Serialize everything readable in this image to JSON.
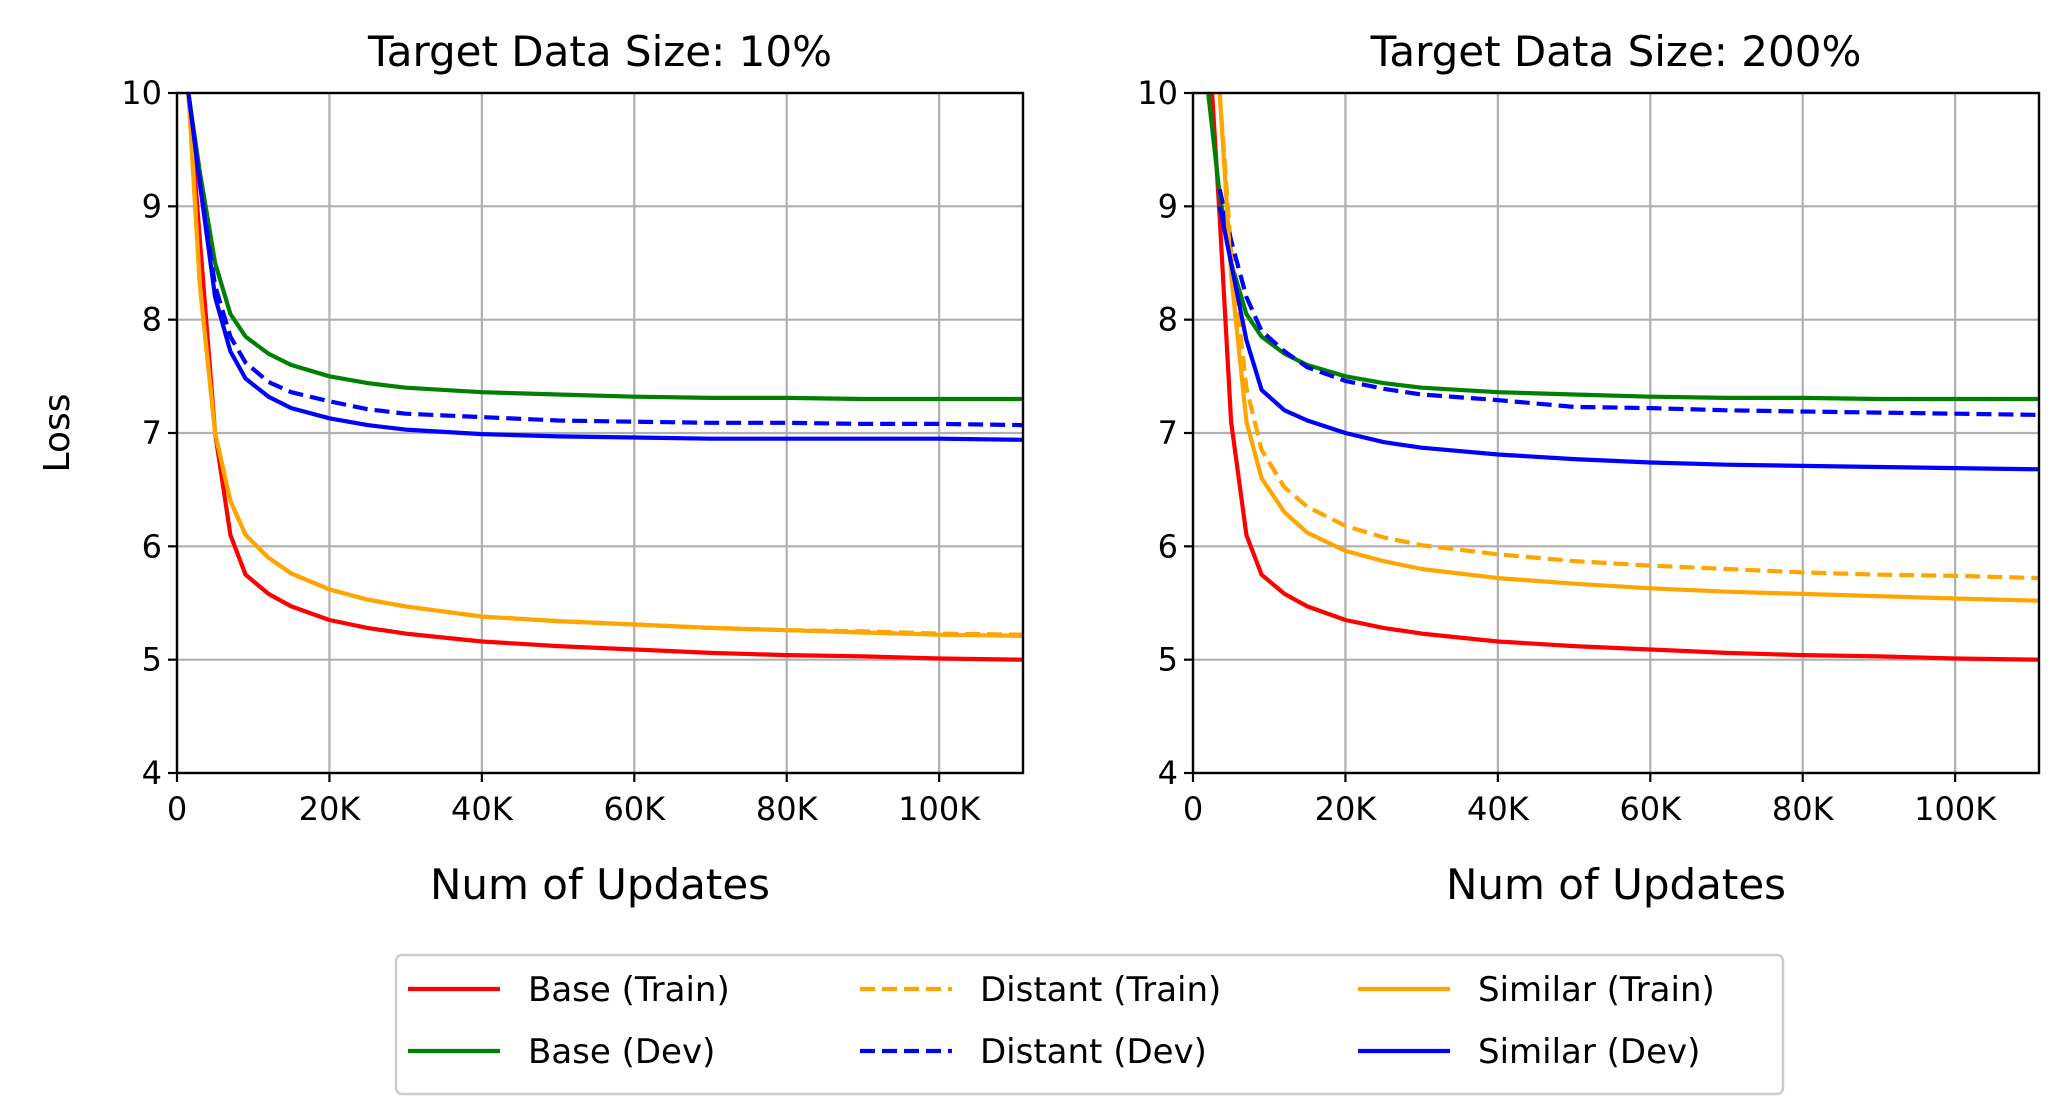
{
  "chart_data": [
    {
      "type": "line",
      "title": "Target Data Size: 10%",
      "xlabel": "Num of Updates",
      "ylabel": "Loss",
      "xlim": [
        0,
        111000
      ],
      "ylim": [
        4,
        10
      ],
      "xticks": [
        0,
        20000,
        40000,
        60000,
        80000,
        100000
      ],
      "xtick_labels": [
        "0",
        "20K",
        "40K",
        "60K",
        "80K",
        "100K"
      ],
      "yticks": [
        4,
        5,
        6,
        7,
        8,
        9,
        10
      ],
      "ytick_labels": [
        "4",
        "5",
        "6",
        "7",
        "8",
        "9",
        "10"
      ],
      "grid": true,
      "series": [
        {
          "name": "Base (Train)",
          "color": "#ff0000",
          "dash": "solid",
          "x": [
            1500,
            3000,
            5000,
            7000,
            9000,
            12000,
            15000,
            20000,
            25000,
            30000,
            40000,
            50000,
            60000,
            70000,
            80000,
            90000,
            100000,
            111000
          ],
          "y": [
            10,
            8.7,
            7.0,
            6.1,
            5.75,
            5.58,
            5.47,
            5.35,
            5.28,
            5.23,
            5.16,
            5.12,
            5.09,
            5.06,
            5.04,
            5.03,
            5.01,
            5.0
          ]
        },
        {
          "name": "Base (Dev)",
          "color": "#008000",
          "dash": "solid",
          "x": [
            1500,
            3000,
            5000,
            7000,
            9000,
            12000,
            15000,
            20000,
            25000,
            30000,
            40000,
            50000,
            60000,
            70000,
            80000,
            90000,
            100000,
            111000
          ],
          "y": [
            10,
            9.3,
            8.5,
            8.05,
            7.85,
            7.7,
            7.6,
            7.5,
            7.44,
            7.4,
            7.36,
            7.34,
            7.32,
            7.31,
            7.31,
            7.3,
            7.3,
            7.3
          ]
        },
        {
          "name": "Distant (Train)",
          "color": "#ffa500",
          "dash": "dashed",
          "x": [
            1500,
            3000,
            5000,
            7000,
            9000,
            12000,
            15000,
            20000,
            25000,
            30000,
            40000,
            50000,
            60000,
            70000,
            80000,
            90000,
            100000,
            111000
          ],
          "y": [
            10,
            8.3,
            7.0,
            6.4,
            6.1,
            5.9,
            5.76,
            5.62,
            5.53,
            5.47,
            5.38,
            5.34,
            5.31,
            5.28,
            5.26,
            5.25,
            5.23,
            5.22
          ]
        },
        {
          "name": "Distant (Dev)",
          "color": "#0000ff",
          "dash": "dashed",
          "x": [
            1500,
            3000,
            5000,
            7000,
            9000,
            12000,
            15000,
            20000,
            25000,
            30000,
            40000,
            50000,
            60000,
            70000,
            80000,
            90000,
            100000,
            111000
          ],
          "y": [
            10,
            9.2,
            8.3,
            7.85,
            7.62,
            7.45,
            7.36,
            7.28,
            7.21,
            7.17,
            7.14,
            7.11,
            7.1,
            7.09,
            7.09,
            7.08,
            7.08,
            7.07
          ]
        },
        {
          "name": "Similar (Train)",
          "color": "#ffa500",
          "dash": "solid",
          "x": [
            1500,
            3000,
            5000,
            7000,
            9000,
            12000,
            15000,
            20000,
            25000,
            30000,
            40000,
            50000,
            60000,
            70000,
            80000,
            90000,
            100000,
            111000
          ],
          "y": [
            10,
            8.3,
            7.0,
            6.4,
            6.1,
            5.9,
            5.76,
            5.62,
            5.53,
            5.47,
            5.38,
            5.34,
            5.31,
            5.28,
            5.26,
            5.24,
            5.22,
            5.21
          ]
        },
        {
          "name": "Similar (Dev)",
          "color": "#0000ff",
          "dash": "solid",
          "x": [
            1500,
            3000,
            5000,
            7000,
            9000,
            12000,
            15000,
            20000,
            25000,
            30000,
            40000,
            50000,
            60000,
            70000,
            80000,
            90000,
            100000,
            111000
          ],
          "y": [
            10,
            9.2,
            8.2,
            7.72,
            7.48,
            7.32,
            7.22,
            7.13,
            7.07,
            7.03,
            6.99,
            6.97,
            6.96,
            6.95,
            6.95,
            6.95,
            6.95,
            6.94
          ]
        }
      ]
    },
    {
      "type": "line",
      "title": "Target Data Size: 200%",
      "xlabel": "Num of Updates",
      "ylabel": "",
      "xlim": [
        0,
        111000
      ],
      "ylim": [
        4,
        10
      ],
      "xticks": [
        0,
        20000,
        40000,
        60000,
        80000,
        100000
      ],
      "xtick_labels": [
        "0",
        "20K",
        "40K",
        "60K",
        "80K",
        "100K"
      ],
      "yticks": [
        4,
        5,
        6,
        7,
        8,
        9,
        10
      ],
      "ytick_labels": [
        "4",
        "5",
        "6",
        "7",
        "8",
        "9",
        "10"
      ],
      "grid": true,
      "series": [
        {
          "name": "Base (Train)",
          "color": "#ff0000",
          "dash": "solid",
          "x": [
            2500,
            3500,
            5000,
            7000,
            9000,
            12000,
            15000,
            20000,
            25000,
            30000,
            40000,
            50000,
            60000,
            70000,
            80000,
            90000,
            100000,
            111000
          ],
          "y": [
            10,
            8.9,
            7.1,
            6.1,
            5.75,
            5.58,
            5.47,
            5.35,
            5.28,
            5.23,
            5.16,
            5.12,
            5.09,
            5.06,
            5.04,
            5.03,
            5.01,
            5.0
          ]
        },
        {
          "name": "Base (Dev)",
          "color": "#008000",
          "dash": "solid",
          "x": [
            2000,
            3500,
            5000,
            7000,
            9000,
            12000,
            15000,
            20000,
            25000,
            30000,
            40000,
            50000,
            60000,
            70000,
            80000,
            90000,
            100000,
            111000
          ],
          "y": [
            10,
            9.1,
            8.5,
            8.05,
            7.85,
            7.7,
            7.6,
            7.5,
            7.44,
            7.4,
            7.36,
            7.34,
            7.32,
            7.31,
            7.31,
            7.3,
            7.3,
            7.3
          ]
        },
        {
          "name": "Distant (Train)",
          "color": "#ffa500",
          "dash": "dashed",
          "x": [
            3500,
            5000,
            7000,
            9000,
            12000,
            15000,
            20000,
            25000,
            30000,
            40000,
            50000,
            60000,
            70000,
            80000,
            90000,
            100000,
            111000
          ],
          "y": [
            10,
            8.6,
            7.4,
            6.85,
            6.52,
            6.35,
            6.18,
            6.08,
            6.01,
            5.93,
            5.87,
            5.83,
            5.8,
            5.77,
            5.75,
            5.74,
            5.72
          ]
        },
        {
          "name": "Distant (Dev)",
          "color": "#0000ff",
          "dash": "dashed",
          "x": [
            3500,
            5000,
            7000,
            9000,
            12000,
            15000,
            20000,
            25000,
            30000,
            40000,
            50000,
            60000,
            70000,
            80000,
            90000,
            100000,
            111000
          ],
          "y": [
            9.15,
            8.7,
            8.2,
            7.9,
            7.72,
            7.58,
            7.46,
            7.39,
            7.34,
            7.29,
            7.23,
            7.22,
            7.2,
            7.19,
            7.18,
            7.17,
            7.16
          ]
        },
        {
          "name": "Similar (Train)",
          "color": "#ffa500",
          "dash": "solid",
          "x": [
            3500,
            5000,
            7000,
            9000,
            12000,
            15000,
            20000,
            25000,
            30000,
            40000,
            50000,
            60000,
            70000,
            80000,
            90000,
            100000,
            111000
          ],
          "y": [
            10,
            8.4,
            7.1,
            6.6,
            6.3,
            6.12,
            5.96,
            5.87,
            5.8,
            5.72,
            5.67,
            5.63,
            5.6,
            5.58,
            5.56,
            5.54,
            5.52
          ]
        },
        {
          "name": "Similar (Dev)",
          "color": "#0000ff",
          "dash": "solid",
          "x": [
            3500,
            5000,
            7000,
            9000,
            12000,
            15000,
            20000,
            25000,
            30000,
            40000,
            50000,
            60000,
            70000,
            80000,
            90000,
            100000,
            111000
          ],
          "y": [
            9.0,
            8.5,
            7.82,
            7.38,
            7.2,
            7.11,
            7.0,
            6.92,
            6.87,
            6.81,
            6.77,
            6.74,
            6.72,
            6.71,
            6.7,
            6.69,
            6.68
          ]
        }
      ]
    }
  ],
  "legend": {
    "entries": [
      {
        "label": "Base (Train)",
        "color": "#ff0000",
        "dash": "solid"
      },
      {
        "label": "Base (Dev)",
        "color": "#008000",
        "dash": "solid"
      },
      {
        "label": "Distant (Train)",
        "color": "#ffa500",
        "dash": "dashed"
      },
      {
        "label": "Distant (Dev)",
        "color": "#0000ff",
        "dash": "dashed"
      },
      {
        "label": "Similar (Train)",
        "color": "#ffa500",
        "dash": "solid"
      },
      {
        "label": "Similar (Dev)",
        "color": "#0000ff",
        "dash": "solid"
      }
    ]
  }
}
